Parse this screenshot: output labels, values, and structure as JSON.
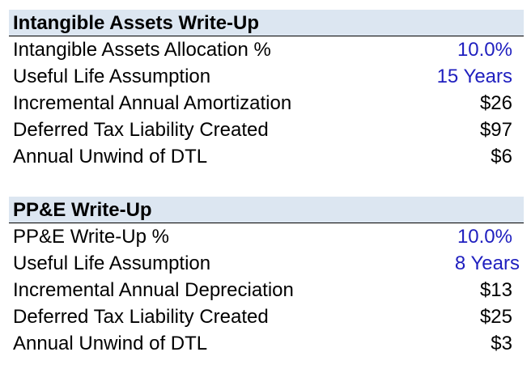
{
  "colors": {
    "header_fill": "#dce6f1",
    "input_text": "#1f1fbf",
    "text": "#000000"
  },
  "sections": [
    {
      "title": "Intangible Assets Write-Up",
      "rows": [
        {
          "label": "Intangible Assets Allocation %",
          "value": "10.0%"
        },
        {
          "label": "Useful Life Assumption",
          "value": "15 Years"
        },
        {
          "label": "Incremental Annual Amortization",
          "value": "$26"
        },
        {
          "label": "Deferred Tax Liability Created",
          "value": "$97"
        },
        {
          "label": "Annual Unwind of DTL",
          "value": "$6"
        }
      ]
    },
    {
      "title": "PP&E Write-Up",
      "rows": [
        {
          "label": "PP&E Write-Up %",
          "value": "10.0%"
        },
        {
          "label": "Useful Life Assumption",
          "value": "8 Years"
        },
        {
          "label": "Incremental Annual Depreciation",
          "value": "$13"
        },
        {
          "label": "Deferred Tax Liability Created",
          "value": "$25"
        },
        {
          "label": "Annual Unwind of DTL",
          "value": "$3"
        }
      ]
    }
  ]
}
